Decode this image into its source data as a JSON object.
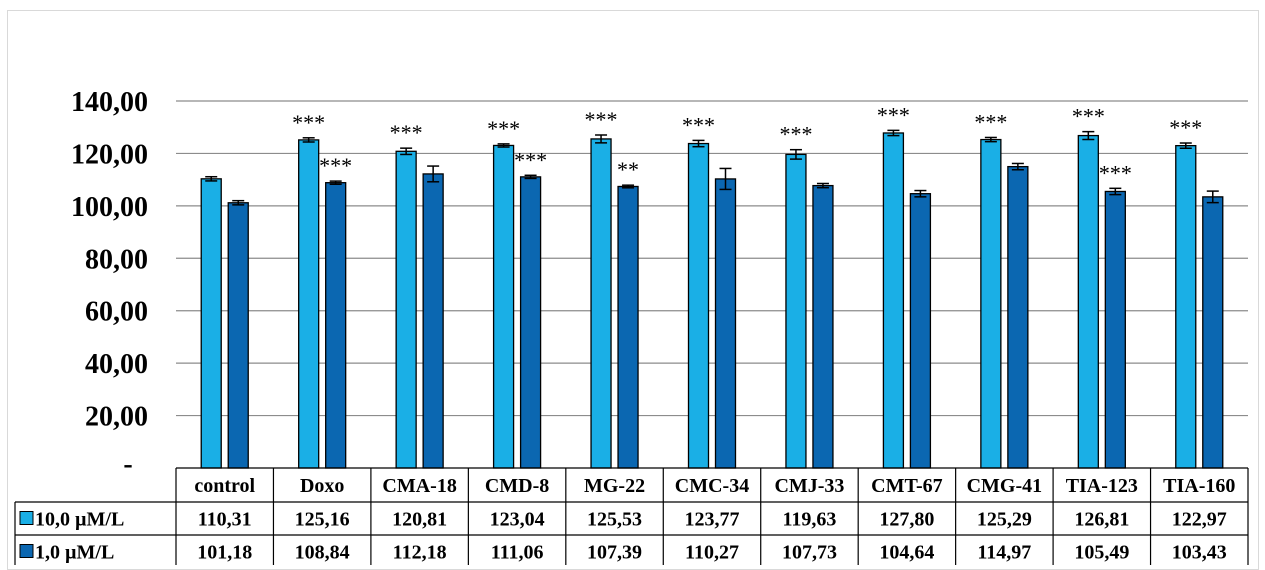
{
  "chart_data": {
    "type": "bar",
    "categories": [
      "control",
      "Doxo",
      "CMA-18",
      "CMD-8",
      "MG-22",
      "CMC-34",
      "CMJ-33",
      "CMT-67",
      "CMG-41",
      "TIA-123",
      "TIA-160"
    ],
    "series": [
      {
        "name": "10,0 µM/L",
        "color": "#1aafe6",
        "values": [
          110.31,
          125.16,
          120.81,
          123.04,
          125.53,
          123.77,
          119.63,
          127.8,
          125.29,
          126.81,
          122.97
        ],
        "value_labels": [
          "110,31",
          "125,16",
          "120,81",
          "123,04",
          "125,53",
          "123,77",
          "119,63",
          "127,80",
          "125,29",
          "126,81",
          "122,97"
        ],
        "errors": [
          0.8,
          0.8,
          1.2,
          0.6,
          1.5,
          1.2,
          1.8,
          1.0,
          0.8,
          1.5,
          1.0
        ],
        "significance": [
          "",
          "***",
          "***",
          "***",
          "***",
          "***",
          "***",
          "***",
          "***",
          "***",
          "***"
        ]
      },
      {
        "name": "1,0 µM/L",
        "color": "#0b67b1",
        "values": [
          101.18,
          108.84,
          112.18,
          111.06,
          107.39,
          110.27,
          107.73,
          104.64,
          114.97,
          105.49,
          103.43
        ],
        "value_labels": [
          "101,18",
          "108,84",
          "112,18",
          "111,06",
          "107,39",
          "110,27",
          "107,73",
          "104,64",
          "114,97",
          "105,49",
          "103,43"
        ],
        "errors": [
          0.8,
          0.6,
          3.0,
          0.6,
          0.5,
          4.0,
          0.8,
          1.2,
          1.2,
          1.2,
          2.2
        ],
        "significance": [
          "",
          "***",
          "",
          "***",
          "**",
          "",
          "",
          "",
          "",
          "***",
          ""
        ]
      }
    ],
    "ylim": [
      0,
      140
    ],
    "y_ticks": [
      0,
      20,
      40,
      60,
      80,
      100,
      120,
      140
    ],
    "y_tick_labels": [
      "-",
      "20,00",
      "40,00",
      "60,00",
      "80,00",
      "100,00",
      "120,00",
      "140,00"
    ],
    "grid": true,
    "legend": "data-table"
  }
}
